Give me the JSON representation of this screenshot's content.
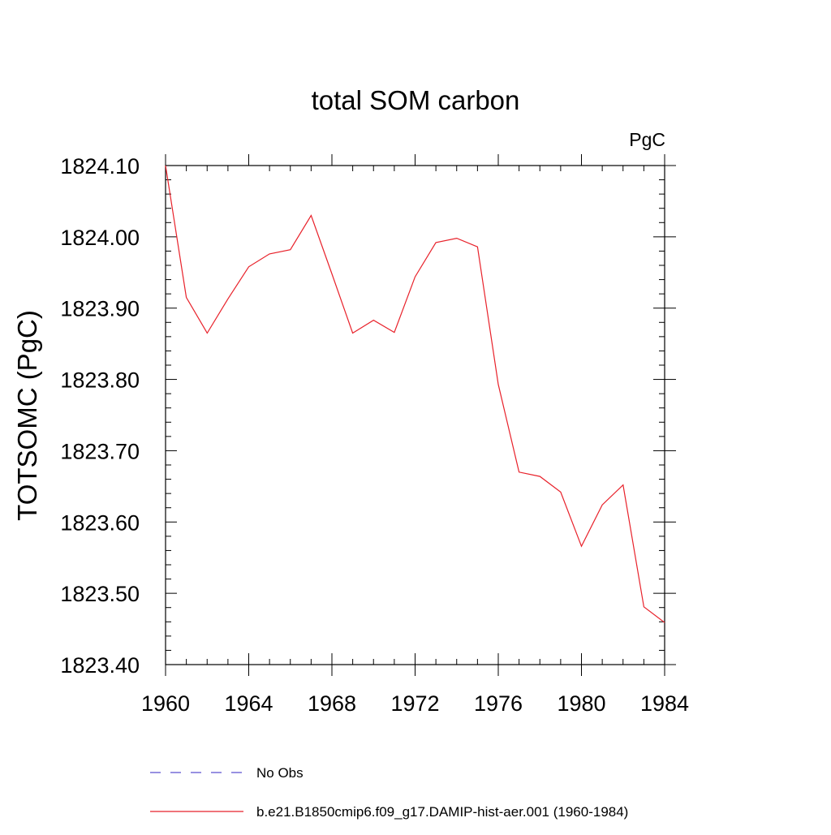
{
  "chart_data": {
    "type": "line",
    "title": "total SOM carbon",
    "units_label": "PgC",
    "ylabel": "TOTSOMC  (PgC)",
    "xlabel": "",
    "xlim": [
      1960,
      1984
    ],
    "ylim": [
      1823.4,
      1824.1
    ],
    "xticks": [
      "1960",
      "1964",
      "1968",
      "1972",
      "1976",
      "1980",
      "1984"
    ],
    "yticks": [
      "1823.40",
      "1823.50",
      "1823.60",
      "1823.70",
      "1823.80",
      "1823.90",
      "1824.00",
      "1824.10"
    ],
    "grid": false,
    "legend_position": "bottom",
    "series": [
      {
        "name": "No Obs",
        "color": "#5a4fcf",
        "dash": "dashed",
        "x": [],
        "values": []
      },
      {
        "name": "b.e21.B1850cmip6.f09_g17.DAMIP-hist-aer.001 (1960-1984)",
        "color": "#e8212a",
        "dash": "solid",
        "x": [
          1960,
          1961,
          1962,
          1963,
          1964,
          1965,
          1966,
          1967,
          1968,
          1969,
          1970,
          1971,
          1972,
          1973,
          1974,
          1975,
          1976,
          1977,
          1978,
          1979,
          1980,
          1981,
          1982,
          1983,
          1984
        ],
        "values": [
          1824.1,
          1823.915,
          1823.865,
          1823.913,
          1823.958,
          1823.976,
          1823.982,
          1824.03,
          1823.948,
          1823.865,
          1823.883,
          1823.866,
          1823.944,
          1823.992,
          1823.998,
          1823.986,
          1823.793,
          1823.67,
          1823.664,
          1823.642,
          1823.566,
          1823.624,
          1823.652,
          1823.481,
          1823.459
        ]
      }
    ]
  }
}
